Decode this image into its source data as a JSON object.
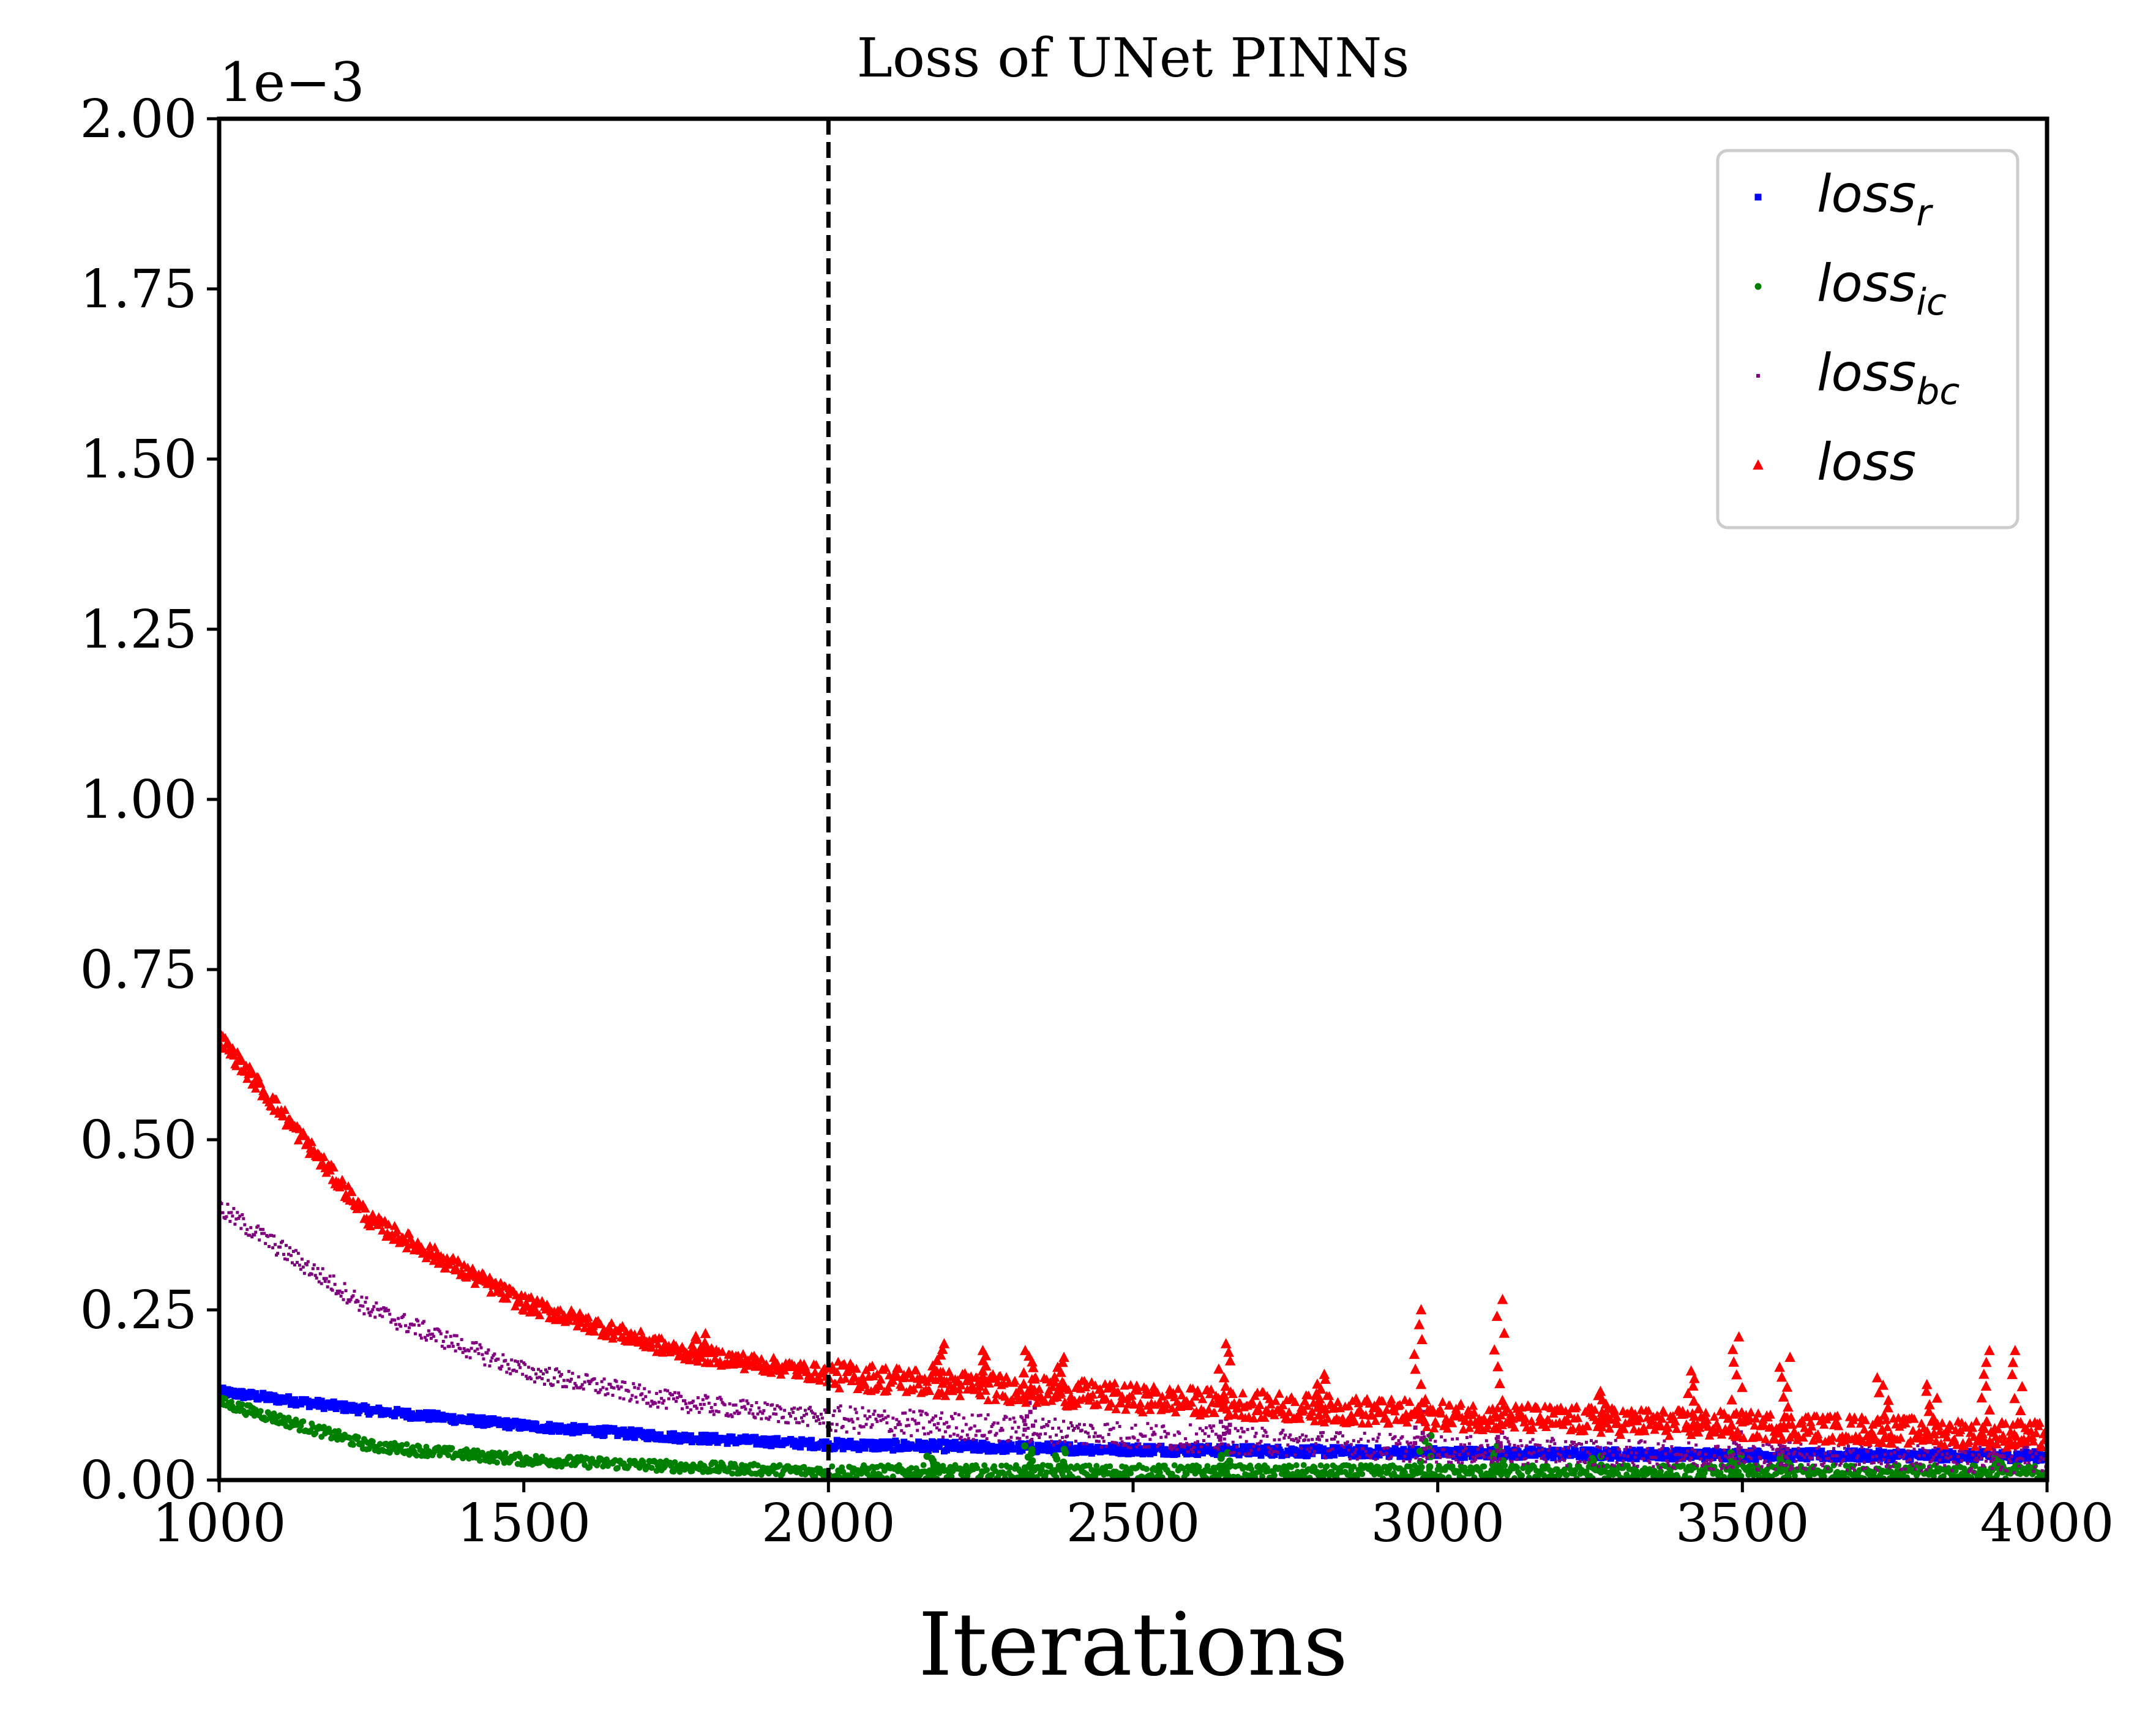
{
  "chart_data": {
    "type": "scatter",
    "title": "Loss of UNet PINNs",
    "xlabel": "Iterations",
    "ylabel": "",
    "xlim": [
      1000,
      4000
    ],
    "ylim": [
      0,
      2.0
    ],
    "y_offset_label": "1e−3",
    "x_ticks": [
      1000,
      1500,
      2000,
      2500,
      3000,
      3500,
      4000
    ],
    "x_tick_labels": [
      "1000",
      "1500",
      "2000",
      "2500",
      "3000",
      "3500",
      "4000"
    ],
    "y_ticks": [
      0,
      0.25,
      0.5,
      0.75,
      1.0,
      1.25,
      1.5,
      1.75,
      2.0
    ],
    "y_tick_labels": [
      "0.00",
      "0.25",
      "0.50",
      "0.75",
      "1.00",
      "1.25",
      "1.50",
      "1.75",
      "2.00"
    ],
    "vline": {
      "x": 2000,
      "style": "dashed",
      "color": "#000000"
    },
    "grid": false,
    "legend_position": "top-right",
    "series": [
      {
        "name": "loss_r",
        "legend_main": "loss",
        "legend_sub": "r",
        "color": "#0000ff",
        "marker": "square",
        "x": [
          1000,
          1250,
          1500,
          1750,
          2000,
          2500,
          3000,
          3500,
          4000
        ],
        "y": [
          0.13,
          0.102,
          0.08,
          0.063,
          0.052,
          0.045,
          0.04,
          0.037,
          0.035
        ]
      },
      {
        "name": "loss_ic",
        "legend_main": "loss",
        "legend_sub": "ic",
        "color": "#008000",
        "marker": "circle",
        "x": [
          1000,
          1250,
          1500,
          1750,
          2000,
          2500,
          3000,
          3500,
          4000
        ],
        "y": [
          0.115,
          0.05,
          0.03,
          0.02,
          0.012,
          0.012,
          0.012,
          0.012,
          0.012
        ],
        "spikes": [
          {
            "x": 2170,
            "y": 0.035
          },
          {
            "x": 2330,
            "y": 0.05
          },
          {
            "x": 2380,
            "y": 0.045
          },
          {
            "x": 2650,
            "y": 0.04
          },
          {
            "x": 2980,
            "y": 0.065
          },
          {
            "x": 3100,
            "y": 0.05
          },
          {
            "x": 3260,
            "y": 0.035
          },
          {
            "x": 3490,
            "y": 0.04
          },
          {
            "x": 3570,
            "y": 0.035
          },
          {
            "x": 3920,
            "y": 0.035
          }
        ]
      },
      {
        "name": "loss_bc",
        "legend_main": "loss",
        "legend_sub": "bc",
        "color": "#800080",
        "marker": "pixel",
        "x": [
          1000,
          1250,
          1500,
          1750,
          2000,
          2500,
          3000,
          3500,
          4000
        ],
        "y": [
          0.4,
          0.25,
          0.16,
          0.115,
          0.09,
          0.065,
          0.045,
          0.035,
          0.03
        ],
        "spikes": [
          {
            "x": 2330,
            "y": 0.12
          },
          {
            "x": 2650,
            "y": 0.09
          },
          {
            "x": 2970,
            "y": 0.1
          },
          {
            "x": 3100,
            "y": 0.09
          },
          {
            "x": 3490,
            "y": 0.07
          },
          {
            "x": 3570,
            "y": 0.06
          },
          {
            "x": 3920,
            "y": 0.06
          }
        ]
      },
      {
        "name": "loss",
        "legend_main": "loss",
        "legend_sub": "",
        "color": "#ff0000",
        "marker": "triangle",
        "x": [
          1000,
          1250,
          1500,
          1750,
          2000,
          2500,
          3000,
          3500,
          4000
        ],
        "y": [
          0.65,
          0.38,
          0.26,
          0.19,
          0.155,
          0.12,
          0.095,
          0.08,
          0.065
        ],
        "spikes": [
          {
            "x": 1790,
            "y": 0.215
          },
          {
            "x": 2180,
            "y": 0.2
          },
          {
            "x": 2250,
            "y": 0.19
          },
          {
            "x": 2330,
            "y": 0.19
          },
          {
            "x": 2380,
            "y": 0.18
          },
          {
            "x": 2650,
            "y": 0.2
          },
          {
            "x": 2810,
            "y": 0.155
          },
          {
            "x": 2970,
            "y": 0.25
          },
          {
            "x": 3100,
            "y": 0.265
          },
          {
            "x": 3270,
            "y": 0.13
          },
          {
            "x": 3420,
            "y": 0.16
          },
          {
            "x": 3490,
            "y": 0.21
          },
          {
            "x": 3570,
            "y": 0.18
          },
          {
            "x": 3730,
            "y": 0.15
          },
          {
            "x": 3810,
            "y": 0.14
          },
          {
            "x": 3900,
            "y": 0.19
          },
          {
            "x": 3950,
            "y": 0.19
          }
        ]
      }
    ]
  }
}
